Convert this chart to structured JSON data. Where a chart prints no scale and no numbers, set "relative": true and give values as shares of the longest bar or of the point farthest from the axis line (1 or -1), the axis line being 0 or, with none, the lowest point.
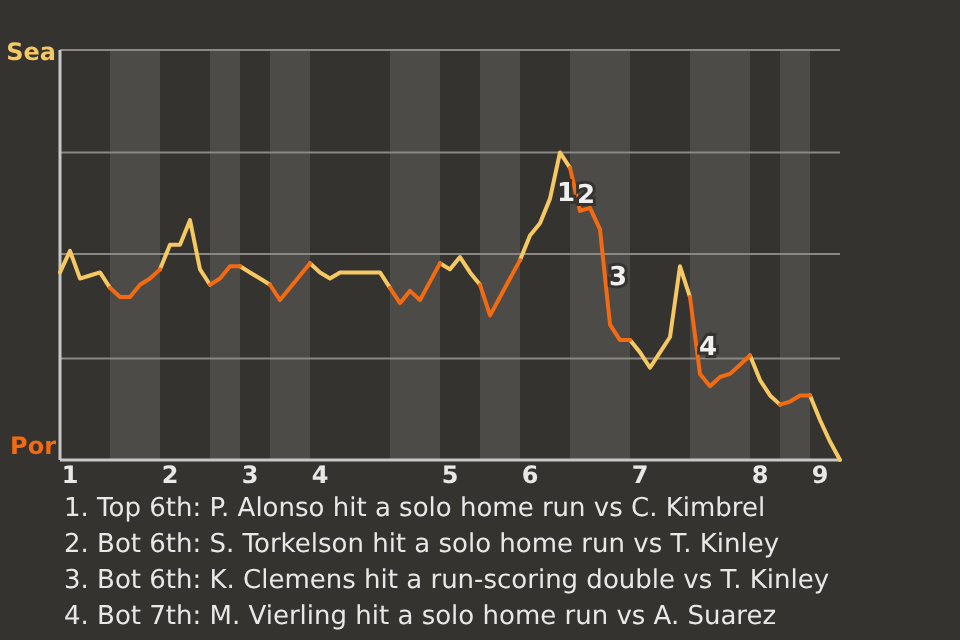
{
  "chart_data": {
    "type": "line",
    "relative": true,
    "ref_lines": [
      {
        "axis": "y",
        "value": 0.33,
        "color": "#8a8885"
      },
      {
        "axis": "y",
        "value": 0.67,
        "color": "#8a8885"
      },
      {
        "axis": "y",
        "value": 1,
        "color": "#8a8885"
      }
    ],
    "categories": [
      null,
      "1",
      null,
      null,
      null,
      null,
      null,
      null,
      null,
      null,
      null,
      "2",
      null,
      null,
      null,
      null,
      null,
      null,
      null,
      "3",
      null,
      null,
      null,
      null,
      null,
      null,
      "4",
      null,
      null,
      null,
      null,
      null,
      null,
      null,
      null,
      null,
      null,
      null,
      null,
      "5",
      null,
      null,
      null,
      null,
      null,
      null,
      null,
      "6",
      null,
      null,
      null,
      null,
      null,
      null,
      null,
      null,
      null,
      null,
      "7",
      null,
      null,
      null,
      null,
      null,
      null,
      null,
      null,
      null,
      null,
      null,
      "8",
      null,
      null,
      null,
      null,
      null,
      "9",
      null,
      null
    ],
    "series": [
      {
        "color": "#f5c862",
        "values": [
          0.61,
          0.68,
          0.59,
          0.6,
          0.61,
          0.56,
          null,
          null,
          null,
          null,
          0.62,
          0.7,
          0.7,
          0.78,
          0.62,
          0.57,
          null,
          null,
          0.63,
          0.61,
          0.59,
          0.57,
          null,
          null,
          null,
          0.64,
          0.61,
          0.59,
          0.61,
          0.61,
          0.61,
          0.61,
          0.61,
          0.56,
          null,
          null,
          null,
          null,
          0.64,
          0.62,
          0.66,
          0.61,
          0.57,
          null,
          null,
          null,
          0.65,
          0.73,
          0.77,
          0.85,
          1,
          0.95,
          null,
          null,
          null,
          null,
          null,
          0.39,
          0.35,
          0.3,
          0.35,
          0.4,
          0.63,
          0.53,
          null,
          null,
          null,
          null,
          null,
          0.34,
          0.26,
          0.21,
          0.18,
          null,
          null,
          0.21,
          0.13,
          0.06,
          0
        ]
      },
      {
        "color": "#f26a12",
        "values": [
          null,
          null,
          null,
          null,
          null,
          0.56,
          0.53,
          0.53,
          0.57,
          0.59,
          0.62,
          null,
          null,
          null,
          null,
          0.57,
          0.59,
          0.63,
          0.63,
          null,
          null,
          0.57,
          0.52,
          0.56,
          0.6,
          0.64,
          null,
          null,
          null,
          null,
          null,
          null,
          null,
          0.56,
          0.51,
          0.55,
          0.52,
          0.58,
          0.64,
          null,
          null,
          null,
          0.57,
          0.47,
          0.53,
          0.59,
          0.65,
          null,
          null,
          null,
          null,
          0.95,
          0.81,
          0.82,
          0.75,
          0.44,
          0.39,
          0.39,
          null,
          null,
          null,
          null,
          null,
          0.53,
          0.28,
          0.24,
          0.27,
          0.28,
          0.31,
          0.34,
          null,
          null,
          0.18,
          0.19,
          0.21,
          0.21,
          null,
          null,
          null
        ]
      }
    ],
    "annotations": [
      "Sea",
      "Por",
      "1",
      "2",
      "3",
      "4",
      "1. Top 6th: P. Alonso hit a solo home run vs C. Kimbrel",
      "2. Bot 6th: S. Torkelson hit a solo home run vs T. Kinley",
      "3. Bot 6th: K. Clemens hit a run-scoring double vs T. Kinley",
      "4. Bot 7th: M. Vierling hit a solo home run vs A. Suarez"
    ]
  }
}
